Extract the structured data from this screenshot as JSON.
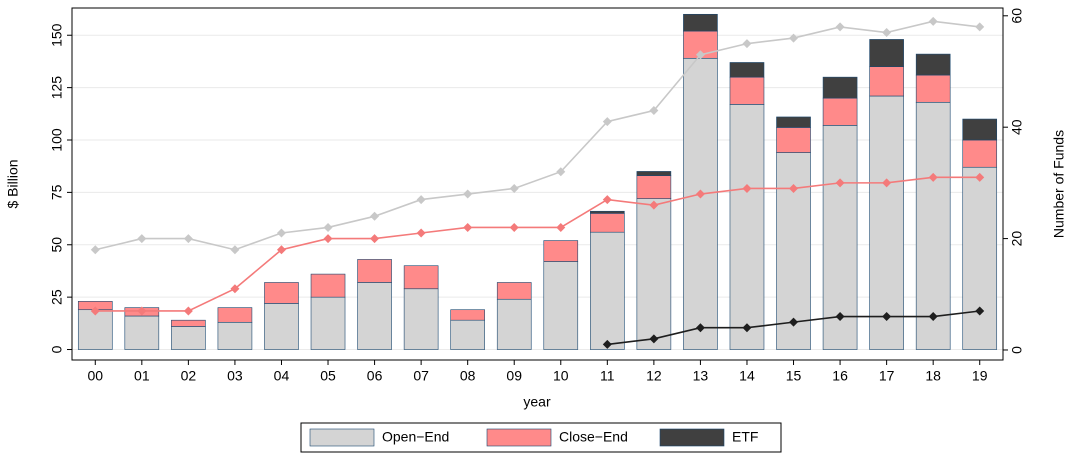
{
  "chart_data": {
    "type": "bar",
    "stacked": true,
    "xlabel": "year",
    "ylabel": "$ Billion",
    "y2label": "Number of Funds",
    "categories": [
      "00",
      "01",
      "02",
      "03",
      "04",
      "05",
      "06",
      "07",
      "08",
      "09",
      "10",
      "11",
      "12",
      "13",
      "14",
      "15",
      "16",
      "17",
      "18",
      "19"
    ],
    "series": [
      {
        "name": "Open−End",
        "type": "bar",
        "color": "#d4d4d4",
        "values": [
          19,
          16,
          11,
          13,
          22,
          25,
          32,
          29,
          14,
          24,
          42,
          56,
          72,
          139,
          117,
          94,
          107,
          121,
          118,
          87
        ]
      },
      {
        "name": "Close−End",
        "type": "bar",
        "color": "#ff8a8a",
        "values": [
          4,
          4,
          3,
          7,
          10,
          11,
          11,
          11,
          5,
          8,
          10,
          9,
          11,
          13,
          13,
          12,
          13,
          14,
          13,
          13
        ]
      },
      {
        "name": "ETF",
        "type": "bar",
        "color": "#404040",
        "values": [
          0,
          0,
          0,
          0,
          0,
          0,
          0,
          0,
          0,
          0,
          0,
          1,
          2,
          8,
          7,
          5,
          10,
          13,
          10,
          10
        ]
      },
      {
        "type": "line",
        "axis": "y2",
        "color": "#c8c8c8",
        "values": [
          18,
          20,
          20,
          18,
          21,
          22,
          24,
          27,
          28,
          29,
          32,
          41,
          43,
          53,
          55,
          56,
          58,
          57,
          59,
          58
        ]
      },
      {
        "type": "line",
        "axis": "y2",
        "color": "#f47a7a",
        "values": [
          7,
          7,
          7,
          11,
          18,
          20,
          20,
          21,
          22,
          22,
          22,
          27,
          26,
          28,
          29,
          29,
          30,
          30,
          31,
          31
        ]
      },
      {
        "type": "line",
        "axis": "y2",
        "color": "#1e1e1e",
        "values": [
          null,
          null,
          null,
          null,
          null,
          null,
          null,
          null,
          null,
          null,
          null,
          1,
          2,
          4,
          4,
          5,
          6,
          6,
          6,
          7
        ]
      }
    ],
    "ylim": [
      -5,
      163
    ],
    "yticks": [
      0,
      25,
      50,
      75,
      100,
      125,
      150
    ],
    "y2lim": [
      -1.8,
      61.4
    ],
    "y2ticks": [
      0,
      20,
      40,
      60
    ],
    "grid": true,
    "legend": "bottom"
  }
}
